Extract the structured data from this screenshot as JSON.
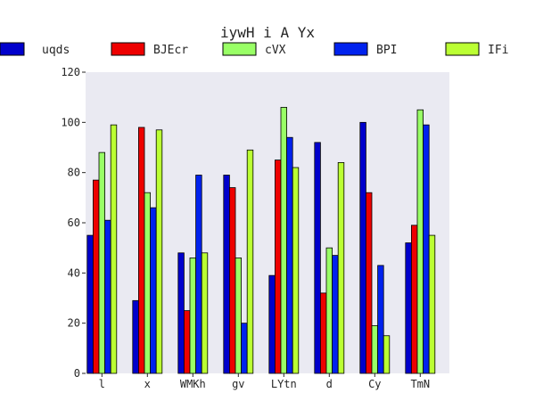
{
  "chart_data": {
    "type": "bar",
    "title": "iywH i  A Yx",
    "xlabel": "",
    "ylabel": "",
    "ylim": [
      0,
      120
    ],
    "yticks": [
      0,
      20,
      40,
      60,
      80,
      100,
      120
    ],
    "grid": false,
    "legend_position": "top",
    "categories": [
      "l",
      "x",
      "WMKh",
      "gv",
      "LYtn",
      "d",
      "Cy",
      "TmN"
    ],
    "series": [
      {
        "name": "uqds",
        "color": "#0000cc",
        "values": [
          55,
          29,
          48,
          79,
          39,
          92,
          100,
          52
        ]
      },
      {
        "name": "BJEcr",
        "color": "#ee0000",
        "values": [
          77,
          98,
          25,
          74,
          85,
          32,
          72,
          59
        ]
      },
      {
        "name": "cVX",
        "color": "#99ff66",
        "values": [
          88,
          72,
          46,
          46,
          106,
          50,
          19,
          105
        ]
      },
      {
        "name": "BPI",
        "color": "#0022ee",
        "values": [
          61,
          66,
          79,
          20,
          94,
          47,
          43,
          99
        ]
      },
      {
        "name": "IFi",
        "color": "#bbff33",
        "values": [
          99,
          97,
          48,
          89,
          82,
          84,
          15,
          55
        ]
      }
    ]
  }
}
